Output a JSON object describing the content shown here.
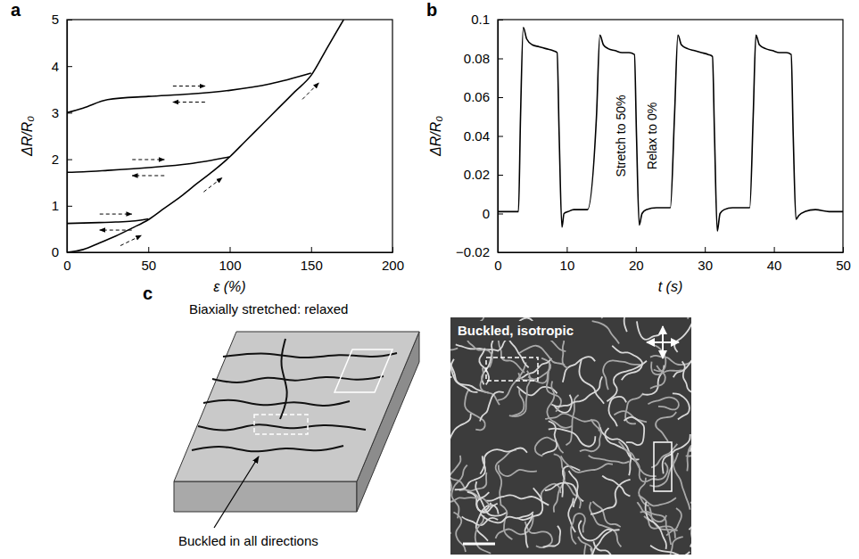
{
  "chart_data": [
    {
      "type": "line",
      "panel_label": "a",
      "x_label": "ε (%)",
      "y_label": "ΔR/R₀",
      "xlim": [
        0,
        200
      ],
      "ylim": [
        0,
        5
      ],
      "xticks": [
        0,
        50,
        100,
        150,
        200
      ],
      "yticks": [
        0,
        1,
        2,
        3,
        4,
        5
      ],
      "grid": false,
      "color": "#000000",
      "series": [
        {
          "x": [
            0,
            10,
            20,
            30,
            40,
            50,
            60,
            70,
            80,
            90,
            100,
            110,
            120,
            130,
            140,
            150,
            160,
            170
          ],
          "values": [
            0,
            0.06,
            0.2,
            0.35,
            0.52,
            0.7,
            0.95,
            1.2,
            1.48,
            1.75,
            2.05,
            2.4,
            2.75,
            3.1,
            3.45,
            3.8,
            4.4,
            5.0
          ]
        },
        {
          "x": [
            0,
            10,
            20,
            30,
            40,
            50
          ],
          "values": [
            0.62,
            0.63,
            0.64,
            0.65,
            0.67,
            0.72
          ]
        },
        {
          "x": [
            0,
            10,
            25,
            50,
            75,
            100
          ],
          "values": [
            1.72,
            1.73,
            1.76,
            1.82,
            1.9,
            2.05
          ]
        },
        {
          "x": [
            0,
            10,
            25,
            50,
            75,
            100,
            125,
            150
          ],
          "values": [
            3.0,
            3.1,
            3.28,
            3.35,
            3.4,
            3.48,
            3.62,
            3.85
          ]
        }
      ]
    },
    {
      "type": "line",
      "panel_label": "b",
      "x_label": "t (s)",
      "y_label": "ΔR/R₀",
      "xlim": [
        0,
        50
      ],
      "ylim": [
        -0.02,
        0.1
      ],
      "xticks": [
        0,
        10,
        20,
        30,
        40,
        50
      ],
      "yticks": [
        {
          "value": -0.02,
          "label": "−0.02"
        },
        0,
        0.02,
        0.04,
        0.06,
        0.08,
        0.1
      ],
      "grid": false,
      "color": "#000000",
      "annotations": [
        "Stretch to 50%",
        "Relax to 0%"
      ],
      "series": [
        {
          "x": [
            0,
            3,
            3.3,
            3.7,
            4.2,
            5,
            6,
            7,
            8,
            8.6,
            8.9,
            9.3,
            9.6,
            10.2,
            11,
            13,
            14.3,
            14.8,
            15.3,
            16,
            17,
            18,
            19,
            19.8,
            20.1,
            20.5,
            20.9,
            21.5,
            23,
            25,
            25.6,
            26.1,
            26.6,
            27.5,
            28.5,
            29.5,
            30.5,
            31.1,
            31.4,
            31.8,
            32.2,
            32.8,
            34,
            36.5,
            37.0,
            37.4,
            37.9,
            38.8,
            39.8,
            40.8,
            41.8,
            42.5,
            42.8,
            43.2,
            43.6,
            44.5,
            46,
            48,
            50
          ],
          "values": [
            0.001,
            0.001,
            0.05,
            0.096,
            0.09,
            0.087,
            0.086,
            0.085,
            0.084,
            0.083,
            0.04,
            -0.007,
            0,
            0.001,
            0.002,
            0.002,
            0.05,
            0.092,
            0.087,
            0.085,
            0.084,
            0.083,
            0.083,
            0.082,
            0.04,
            -0.006,
            0,
            0.002,
            0.003,
            0.003,
            0.05,
            0.092,
            0.087,
            0.085,
            0.084,
            0.083,
            0.082,
            0.081,
            0.04,
            -0.009,
            0,
            0.002,
            0.003,
            0.003,
            0.05,
            0.092,
            0.087,
            0.085,
            0.084,
            0.083,
            0.083,
            0.082,
            0.04,
            -0.003,
            -0.001,
            0.001,
            0.002,
            0.001,
            0.001
          ]
        }
      ]
    }
  ],
  "diagram": {
    "panel_label": "c",
    "schematic_title": "Biaxially stretched: relaxed",
    "schematic_callout": "Buckled in all directions",
    "micrograph_label": "Buckled, isotropic"
  }
}
